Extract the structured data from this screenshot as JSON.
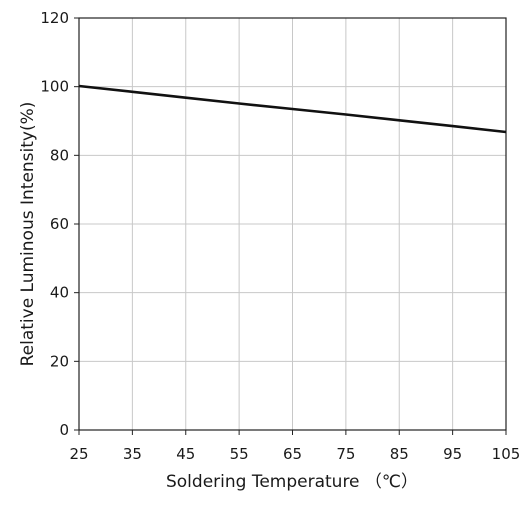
{
  "chart_data": {
    "type": "line",
    "title": "",
    "xlabel": "Soldering Temperature （℃）",
    "ylabel": "Relative Luminous Intensity(%)",
    "xlim": [
      25,
      105
    ],
    "ylim": [
      0,
      120
    ],
    "x_ticks": [
      "25",
      "35",
      "45",
      "55",
      "65",
      "75",
      "85",
      "95",
      "105"
    ],
    "y_ticks": [
      "0",
      "20",
      "40",
      "60",
      "80",
      "100",
      "120"
    ],
    "grid": true,
    "legend": "none",
    "series": [
      {
        "x": [
          25,
          35,
          45,
          55,
          65,
          75,
          85,
          95,
          105
        ],
        "y": [
          100.2,
          98.5,
          96.8,
          95.1,
          93.5,
          91.9,
          90.2,
          88.5,
          86.8
        ]
      }
    ],
    "colors": {
      "line": "#111111",
      "grid": "#c8c8c8",
      "axis": "#222222"
    }
  }
}
